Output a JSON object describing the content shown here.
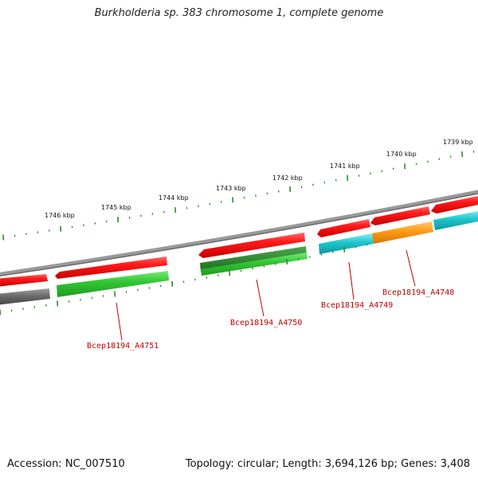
{
  "title": "Burkholderia sp. 383 chromosome 1, complete genome",
  "footer": {
    "accession": "Accession: NC_007510",
    "summary": "Topology: circular; Length: 3,694,126 bp; Genes: 3,408"
  },
  "scale_labels": [
    "1746 kbp",
    "1745 kbp",
    "1744 kbp",
    "1743 kbp",
    "1742 kbp",
    "1741 kbp",
    "1740 kbp",
    "1739 kbp"
  ],
  "gene_labels": [
    "Bcep18194_A4751",
    "Bcep18194_A4750",
    "Bcep18194_A4749",
    "Bcep18194_A4748"
  ],
  "colors": {
    "forward_cds": "#e8141c",
    "reverse_cds": "#37c837",
    "reverse_dark": "#2f8a2f",
    "cyan_feature": "#1ec4cc",
    "orange_feature": "#ff9a14",
    "gray_feature": "#6b6b6b",
    "backbone": "#8a8a8a",
    "ticks": "#2e8b2e",
    "label": "#c00000"
  }
}
